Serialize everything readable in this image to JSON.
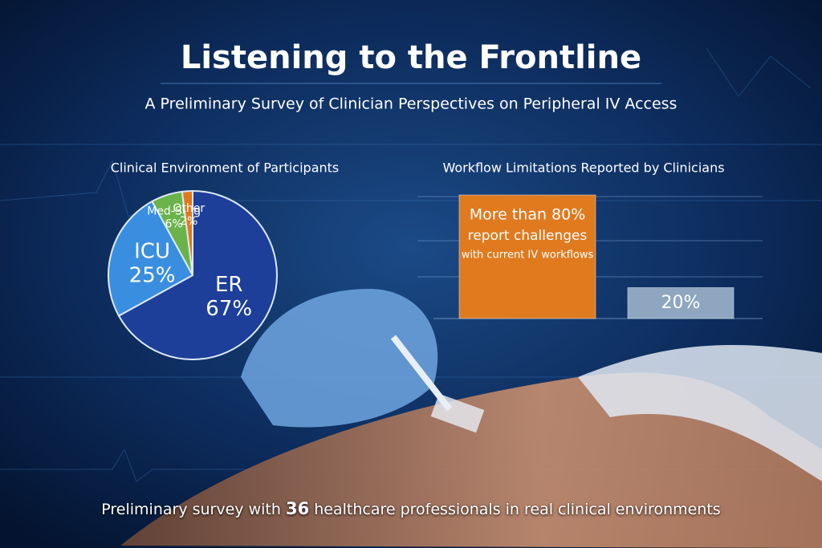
{
  "title": "Listening to the Frontline",
  "subtitle": "A Preliminary Survey of Clinician Perspectives on Peripheral IV Access",
  "footer": {
    "lead": "Preliminary survey with",
    "count": 36,
    "tail": "healthcare professionals in real clinical environments"
  },
  "chart_data": [
    {
      "type": "pie",
      "title": "Clinical Environment of Participants",
      "categories": [
        "ER",
        "ICU",
        "Med-Surg",
        "Other"
      ],
      "values": [
        67,
        25,
        6,
        2
      ],
      "value_labels": [
        "67%",
        "25%",
        "6%",
        "2%"
      ],
      "colors": [
        "#1d3f9a",
        "#3a8ee0",
        "#6ab24a",
        "#e0791c"
      ]
    },
    {
      "type": "bar",
      "title": "Workflow Limitations Reported by Clinicians",
      "categories": [
        null,
        null
      ],
      "values": [
        80,
        20
      ],
      "value_labels": [
        "More than 80%",
        "20%"
      ],
      "annotations": [
        "report challenges",
        "with current IV workflows"
      ],
      "colors": [
        "#e07a1f",
        "#8ea6bf"
      ],
      "ylim": [
        0,
        100
      ]
    }
  ]
}
